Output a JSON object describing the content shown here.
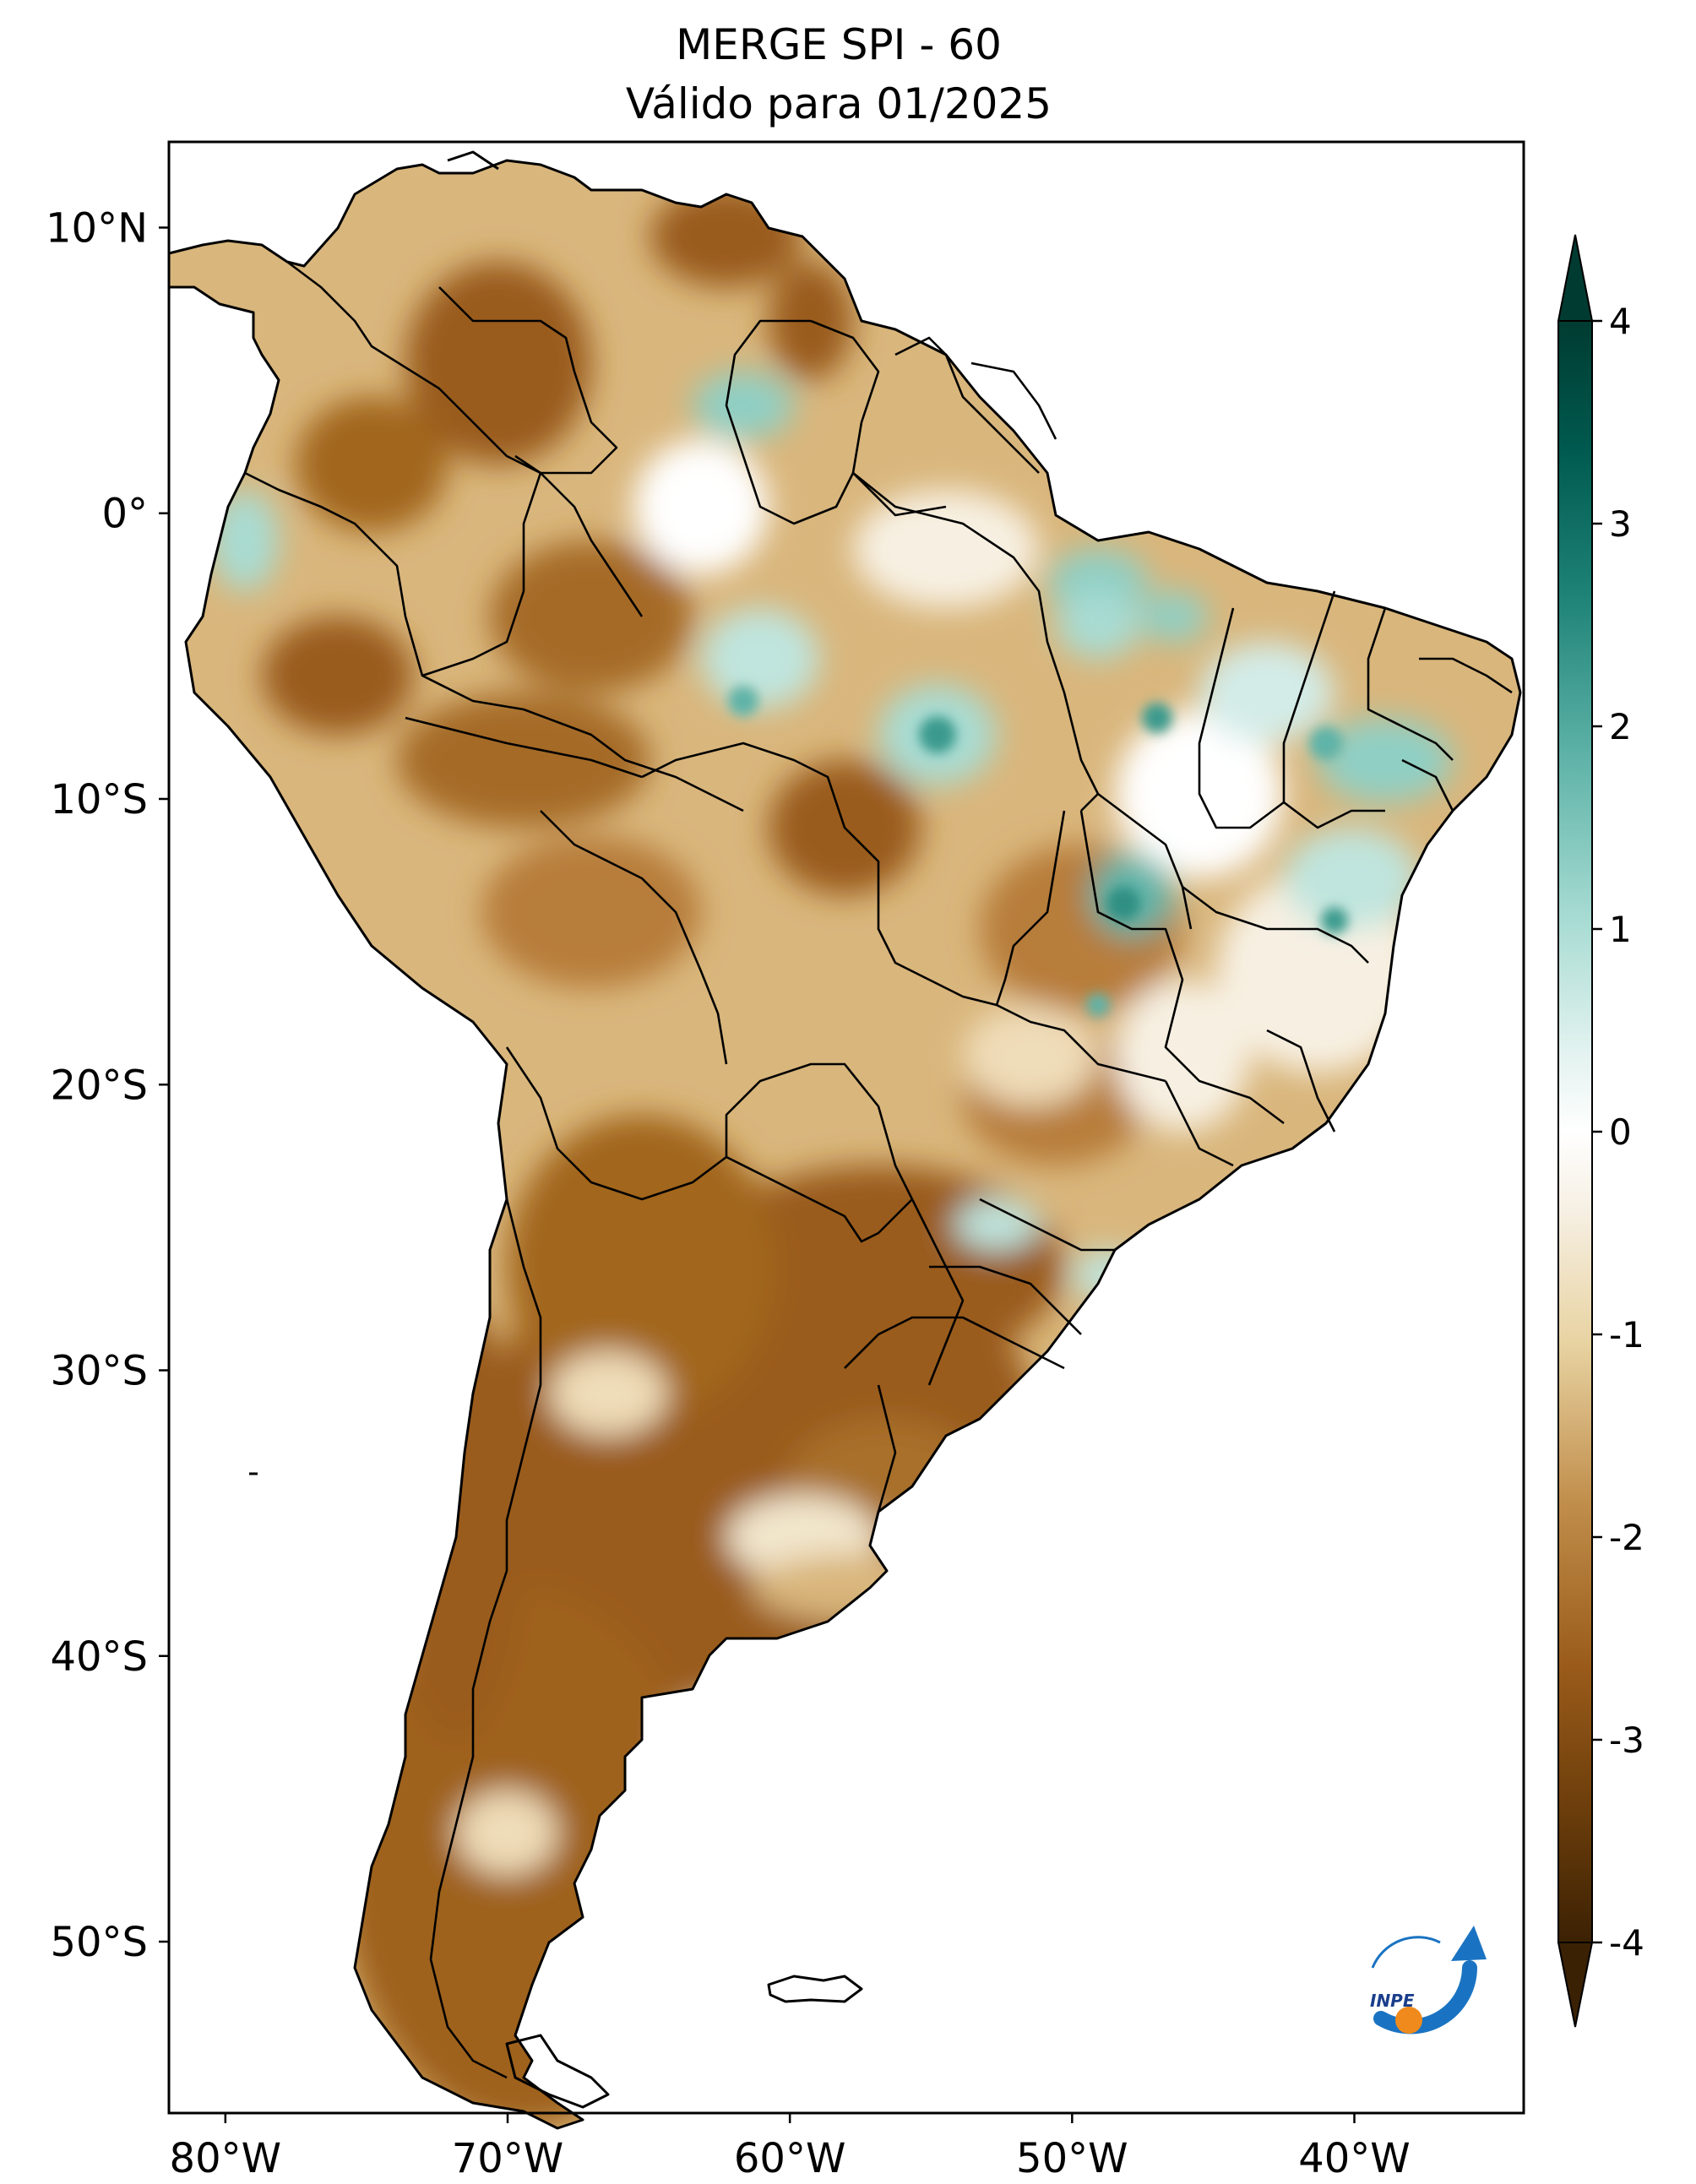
{
  "title": {
    "line1": "MERGE   SPI - 60",
    "line2": "Válido para 01/2025"
  },
  "map": {
    "projection": "PlateCarree",
    "lon_range": [
      -82,
      -34
    ],
    "lat_range": [
      -56,
      13
    ],
    "x_ticks": [
      {
        "lon": -80,
        "label": "80°W"
      },
      {
        "lon": -70,
        "label": "70°W"
      },
      {
        "lon": -60,
        "label": "60°W"
      },
      {
        "lon": -50,
        "label": "50°W"
      },
      {
        "lon": -40,
        "label": "40°W"
      }
    ],
    "y_ticks": [
      {
        "lat": 10,
        "label": "10°N"
      },
      {
        "lat": 0,
        "label": "0°"
      },
      {
        "lat": -10,
        "label": "10°S"
      },
      {
        "lat": -20,
        "label": "20°S"
      },
      {
        "lat": -30,
        "label": "30°S"
      },
      {
        "lat": -40,
        "label": "40°S"
      },
      {
        "lat": -50,
        "label": "50°S"
      }
    ]
  },
  "colorbar": {
    "colormap": "BrBG",
    "vmin": -4,
    "vmax": 4,
    "extend": "both",
    "ticks": [
      {
        "value": 4,
        "label": "4"
      },
      {
        "value": 3,
        "label": "3"
      },
      {
        "value": 2,
        "label": "2"
      },
      {
        "value": 1,
        "label": "1"
      },
      {
        "value": 0,
        "label": "0"
      },
      {
        "value": -1,
        "label": "-1"
      },
      {
        "value": -2,
        "label": "-2"
      },
      {
        "value": -3,
        "label": "-3"
      },
      {
        "value": -4,
        "label": "-4"
      }
    ],
    "colors": [
      "#3b2103",
      "#6b3d0b",
      "#9a5b1a",
      "#c08d4a",
      "#e8d3a2",
      "#f6efe2",
      "#ffffff",
      "#e2f2ef",
      "#a8dcd3",
      "#5fb3a8",
      "#1f8377",
      "#005a4f",
      "#003b31"
    ]
  },
  "spi_field": {
    "palette": {
      "extreme_dry": "#9a5b1a",
      "severe_dry": "#b77d3a",
      "moderate_dry": "#d9b67c",
      "mild_dry": "#efdcb8",
      "normal": "#ffffff",
      "mild_wet": "#d3ece8",
      "moderate_wet": "#8fcfc4",
      "severe_wet": "#3b9a8d"
    }
  },
  "logo": {
    "text": "INPE",
    "colors": {
      "arrow": "#1a73c2",
      "dot": "#f08a1c"
    }
  }
}
